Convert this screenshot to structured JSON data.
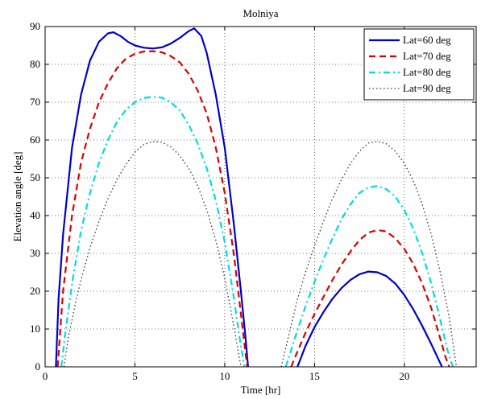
{
  "chart_data": {
    "type": "line",
    "title": "Molniya",
    "xlabel": "Time [hr]",
    "ylabel": "Elevation angle [deg]",
    "xlim": [
      0,
      24
    ],
    "ylim": [
      0,
      90
    ],
    "xticks": [
      0,
      5,
      10,
      15,
      20
    ],
    "yticks": [
      0,
      10,
      20,
      30,
      40,
      50,
      60,
      70,
      80,
      90
    ],
    "grid": true,
    "legend_position": "top-right",
    "series": [
      {
        "name": "Lat=60 deg",
        "color": "#0000cc",
        "style": "solid",
        "segments": [
          {
            "x": [
              0.6,
              0.75,
              1.0,
              1.5,
              2.0,
              2.5,
              3.0,
              3.5,
              3.8,
              4.2,
              4.6,
              5.0,
              5.5,
              6.0,
              6.5,
              7.0,
              7.5,
              8.0,
              8.3,
              8.7,
              9.0,
              9.5,
              10.0,
              10.5,
              10.9,
              11.15,
              11.3
            ],
            "y": [
              0,
              18,
              35,
              58,
              72,
              81,
              86,
              88.2,
              88.5,
              87.5,
              86,
              85,
              84.4,
              84.2,
              84.5,
              85.5,
              87,
              88.8,
              89.5,
              87.5,
              83,
              72,
              58,
              38,
              20,
              8,
              0
            ]
          },
          {
            "x": [
              14.05,
              14.5,
              15.0,
              15.5,
              16.0,
              16.5,
              17.0,
              17.5,
              18.0,
              18.5,
              19.0,
              19.5,
              20.0,
              20.5,
              21.0,
              21.5,
              22.0,
              22.1
            ],
            "y": [
              0,
              5.5,
              10.5,
              14.5,
              18,
              20.8,
              23,
              24.5,
              25.2,
              25,
              24,
              22,
              19,
              15.2,
              10.8,
              6,
              1,
              0
            ]
          }
        ]
      },
      {
        "name": "Lat=70 deg",
        "color": "#dd0000",
        "style": "dashed",
        "segments": [
          {
            "x": [
              0.7,
              0.85,
              1.0,
              1.5,
              2.0,
              2.5,
              3.0,
              3.5,
              4.0,
              4.5,
              5.0,
              5.5,
              6.0,
              6.5,
              7.0,
              7.5,
              8.0,
              8.5,
              9.0,
              9.5,
              10.0,
              10.5,
              10.8,
              11.05,
              11.25
            ],
            "y": [
              0,
              10,
              20,
              40,
              54,
              63,
              70,
              75,
              79,
              81.5,
              82.8,
              83.4,
              83.5,
              83.2,
              82.2,
              80.5,
              77.5,
              73,
              67,
              58,
              46,
              30,
              18,
              8,
              0
            ]
          },
          {
            "x": [
              13.7,
              14.0,
              14.5,
              15.0,
              15.5,
              16.0,
              16.5,
              17.0,
              17.5,
              18.0,
              18.5,
              19.0,
              19.5,
              20.0,
              20.5,
              21.0,
              21.5,
              22.0,
              22.3,
              22.5
            ],
            "y": [
              0,
              3.5,
              9,
              14,
              18.5,
              23,
              27,
              30.5,
              33.5,
              35.5,
              36.2,
              35.8,
              34,
              31.2,
              27.2,
              22,
              15.5,
              7.5,
              2.5,
              0
            ]
          }
        ]
      },
      {
        "name": "Lat=80 deg",
        "color": "#00dddd",
        "style": "dashdot",
        "segments": [
          {
            "x": [
              0.9,
              1.1,
              1.5,
              2.0,
              2.5,
              3.0,
              3.5,
              4.0,
              4.5,
              5.0,
              5.5,
              6.0,
              6.5,
              7.0,
              7.5,
              8.0,
              8.5,
              9.0,
              9.5,
              10.0,
              10.5,
              10.8,
              11.1
            ],
            "y": [
              0,
              8,
              22,
              36,
              46,
              54,
              60,
              64.8,
              68,
              70,
              71.1,
              71.4,
              71.2,
              70,
              67.8,
              64,
              59,
              52.5,
              44,
              33,
              18.5,
              8.5,
              0
            ]
          },
          {
            "x": [
              13.4,
              13.7,
              14.0,
              14.5,
              15.0,
              15.5,
              16.0,
              16.5,
              17.0,
              17.5,
              18.0,
              18.5,
              19.0,
              19.5,
              20.0,
              20.5,
              21.0,
              21.5,
              22.0,
              22.4,
              22.7
            ],
            "y": [
              0,
              4.5,
              9,
              16,
              22.5,
              28.5,
              34,
              39,
              43,
              46,
              47.5,
              47.8,
              47,
              45,
              41.5,
              36.5,
              30,
              22,
              12.5,
              4.5,
              0
            ]
          }
        ]
      },
      {
        "name": "Lat=90 deg",
        "color": "#333333",
        "style": "dotted",
        "segments": [
          {
            "x": [
              1.05,
              1.3,
              1.7,
              2.0,
              2.5,
              3.0,
              3.5,
              4.0,
              4.5,
              5.0,
              5.5,
              6.0,
              6.5,
              7.0,
              7.5,
              8.0,
              8.5,
              9.0,
              9.5,
              10.0,
              10.5,
              10.9
            ],
            "y": [
              0,
              8,
              17,
              23,
              31.5,
              38.5,
              44.5,
              49.5,
              53.5,
              56.8,
              58.8,
              59.6,
              59.4,
              58.2,
              55.8,
              52.5,
              47.8,
              41.5,
              33.5,
              23.5,
              11,
              0
            ]
          },
          {
            "x": [
              13.15,
              13.4,
              13.7,
              14.0,
              14.5,
              15.0,
              15.5,
              16.0,
              16.5,
              17.0,
              17.5,
              18.0,
              18.5,
              19.0,
              19.5,
              20.0,
              20.5,
              21.0,
              21.5,
              22.0,
              22.5,
              22.9
            ],
            "y": [
              0,
              5,
              11,
              17,
              25,
              32,
              38.5,
              44.5,
              49.5,
              53.8,
              57,
              59.2,
              59.6,
              59,
              57,
              53.8,
              49.2,
              43,
              35,
              25,
              13,
              0
            ]
          }
        ]
      }
    ]
  }
}
